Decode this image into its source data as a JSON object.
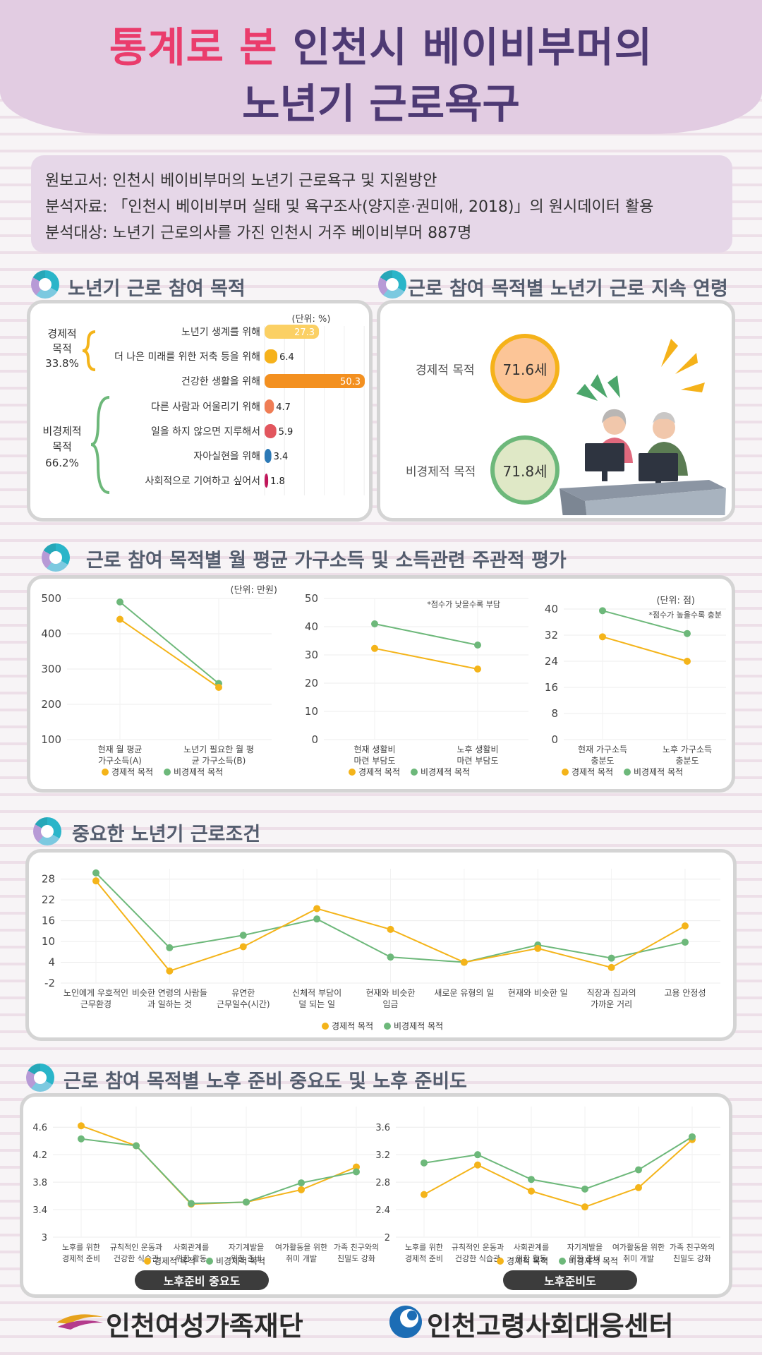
{
  "header": {
    "title_pink": "통계로 본",
    "title_rest": " 인천시 베이비부머의",
    "title_line2": "노년기 근로욕구"
  },
  "info": {
    "line1": "원보고서: 인천시 베이비부머의 노년기 근로욕구 및 지원방안",
    "line2": "분석자료: 「인천시 베이비부머 실태 및 욕구조사(양지훈·권미애, 2018)」의 원시데이터 활용",
    "line3": "분석대상: 노년기 근로의사를 가진 인천시 거주 베이비부머 887명"
  },
  "sec1": {
    "title": "노년기 근로 참여 목적",
    "unit": "(단위: %)",
    "group1": {
      "name1": "경제적",
      "name2": "목적",
      "pct": "33.8%"
    },
    "group2": {
      "name1": "비경제적",
      "name2": "목적",
      "pct": "66.2%"
    }
  },
  "sec2": {
    "title": "근로 참여 목적별 노년기 근로 지속 연령",
    "econ_label": "경제적 목적",
    "econ_value": "71.6세",
    "nonecon_label": "비경제적 목적",
    "nonecon_value": "71.8세"
  },
  "sec3": {
    "title": "근로 참여 목적별 월 평균 가구소득 및 소득관련 주관적 평가"
  },
  "sec4": {
    "title": "중요한 노년기 근로조건"
  },
  "sec5": {
    "title": "근로 참여 목적별 노후 준비 중요도 및 노후 준비도",
    "pill1": "노후준비 중요도",
    "pill2": "노후준비도"
  },
  "legend": {
    "econ": "경제적 목적",
    "nonecon": "비경제적 목적"
  },
  "colors": {
    "econ": "#f4b41a",
    "nonecon": "#6db87a",
    "title": "#4e3a74",
    "pink": "#ea3c6c"
  },
  "footer": {
    "logo1": "인천여성가족재단",
    "logo2": "인천고령사회대응센터"
  },
  "chart_data": [
    {
      "type": "bar",
      "orientation": "horizontal",
      "unit": "(단위: %)",
      "categories": [
        "노년기 생계를 위해",
        "더 나은 미래를 위한 저축 등을 위해",
        "건강한 생활을 위해",
        "다른 사람과 어울리기 위해",
        "일을 하지 않으면 지루해서",
        "자아실현을 위해",
        "사회적으로 기여하고 싶어서"
      ],
      "values": [
        27.3,
        6.4,
        50.3,
        4.7,
        5.9,
        3.4,
        1.8
      ],
      "colors": [
        "#fbd064",
        "#f6b21c",
        "#f39020",
        "#ef7d55",
        "#e2565e",
        "#2c79b6",
        "#c0165a"
      ]
    },
    {
      "type": "line",
      "unit": "(단위: 만원)",
      "note": "",
      "categories": [
        "현재 월 평균 가구소득(A)",
        "노년기 필요한 월 평균 가구소득(B)"
      ],
      "ylim": [
        100,
        500
      ],
      "yticks": [
        100,
        200,
        300,
        400,
        500
      ],
      "series": [
        {
          "name": "경제적 목적",
          "values": [
            441,
            248
          ]
        },
        {
          "name": "비경제적 목적",
          "values": [
            490,
            259
          ]
        }
      ]
    },
    {
      "type": "line",
      "unit": "",
      "note": "*점수가 낮을수록 부담",
      "categories": [
        "현재 생활비 마련 부담도",
        "노후 생활비 마련 부담도"
      ],
      "ylim": [
        0,
        50
      ],
      "yticks": [
        0,
        10,
        20,
        30,
        40,
        50
      ],
      "series": [
        {
          "name": "경제적 목적",
          "values": [
            32.3,
            25.0
          ]
        },
        {
          "name": "비경제적 목적",
          "values": [
            41.0,
            33.5
          ]
        }
      ]
    },
    {
      "type": "line",
      "unit": "(단위: 점)",
      "note": "*점수가 높을수록 충분",
      "categories": [
        "현재 가구소득 충분도",
        "노후 가구소득 충분도"
      ],
      "ylim": [
        0,
        40
      ],
      "yticks": [
        0,
        8,
        16,
        24,
        32,
        40
      ],
      "series": [
        {
          "name": "경제적 목적",
          "values": [
            31.5,
            24.0
          ]
        },
        {
          "name": "비경제적 목적",
          "values": [
            39.5,
            32.5
          ]
        }
      ]
    },
    {
      "type": "line",
      "categories": [
        "노인에게 우호적인 근무환경",
        "비슷한 연령의 사람들과 일하는 것",
        "유연한 근무일수(시간)",
        "신체적 부담이 덜 되는 일",
        "현재와 비슷한 임금",
        "새로운 유형의 일",
        "현재와 비슷한 일",
        "직장과 집과의 가까운 거리",
        "고용 안정성"
      ],
      "ylim": [
        -2,
        31
      ],
      "yticks": [
        -2,
        4,
        10,
        16,
        22,
        28
      ],
      "series": [
        {
          "name": "경제적 목적",
          "values": [
            27.5,
            1.5,
            8.5,
            19.5,
            13.5,
            4.0,
            8.0,
            2.5,
            14.5
          ]
        },
        {
          "name": "비경제적 목적",
          "values": [
            29.8,
            8.2,
            11.8,
            16.5,
            5.5,
            4.0,
            9.0,
            5.2,
            9.8
          ]
        }
      ]
    },
    {
      "type": "line",
      "categories": [
        "노후를 위한 경제적 준비",
        "규칙적인 운동과 건강한 식습관",
        "사회관계를 위한 활동",
        "자기계발을 위한 준비",
        "여가활동을 위한 취미 개발",
        "가족 친구와의 친밀도 강화"
      ],
      "ylim": [
        3,
        4.9
      ],
      "yticks": [
        3,
        3.4,
        3.8,
        4.2,
        4.6
      ],
      "series": [
        {
          "name": "경제적 목적",
          "values": [
            4.62,
            4.33,
            3.48,
            3.51,
            3.69,
            4.02
          ]
        },
        {
          "name": "비경제적 목적",
          "values": [
            4.43,
            4.33,
            3.49,
            3.51,
            3.79,
            3.95
          ]
        }
      ]
    },
    {
      "type": "line",
      "categories": [
        "노후를 위한 경제적 준비",
        "규칙적인 운동과 건강한 식습관",
        "사회관계를 위한 활동",
        "자기계발을 위한 준비",
        "여가활동을 위한 취미 개발",
        "가족 친구와의 친밀도 강화"
      ],
      "ylim": [
        2,
        3.9
      ],
      "yticks": [
        2,
        2.4,
        2.8,
        3.2,
        3.6
      ],
      "series": [
        {
          "name": "경제적 목적",
          "values": [
            2.62,
            3.05,
            2.67,
            2.44,
            2.72,
            3.42
          ]
        },
        {
          "name": "비경제적 목적",
          "values": [
            3.08,
            3.2,
            2.84,
            2.7,
            2.98,
            3.46
          ]
        }
      ]
    }
  ]
}
